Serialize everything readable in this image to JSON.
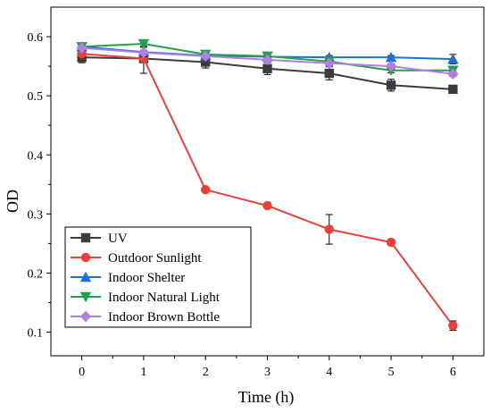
{
  "chart_data": {
    "type": "line",
    "xlabel": "Time (h)",
    "ylabel": "OD",
    "x": [
      0,
      1,
      2,
      3,
      4,
      5,
      6
    ],
    "xlim": [
      -0.5,
      6.5
    ],
    "ylim": [
      0.06,
      0.65
    ],
    "x_ticks": [
      "0",
      "1",
      "2",
      "3",
      "4",
      "5",
      "6"
    ],
    "y_ticks": [
      "0.1",
      "0.2",
      "0.3",
      "0.4",
      "0.5",
      "0.6"
    ],
    "grid": false,
    "legend_position": "bottom-left",
    "series": [
      {
        "name": "UV",
        "color": "#3c3c3c",
        "marker": "square",
        "values": [
          0.565,
          0.563,
          0.557,
          0.546,
          0.538,
          0.518,
          0.511
        ],
        "errors": [
          0.009,
          0.007,
          0.01,
          0.01,
          0.011,
          0.01,
          0.003
        ]
      },
      {
        "name": "Outdoor Sunlight",
        "color": "#e8413c",
        "marker": "circle",
        "values": [
          0.571,
          0.563,
          0.341,
          0.314,
          0.274,
          0.252,
          0.111
        ],
        "errors": [
          0.006,
          0.025,
          0.004,
          0.004,
          0.025,
          0.004,
          0.008
        ]
      },
      {
        "name": "Indoor Shelter",
        "color": "#1f6fd6",
        "marker": "triangle-up",
        "values": [
          0.583,
          0.574,
          0.568,
          0.566,
          0.565,
          0.565,
          0.562
        ],
        "errors": [
          0.003,
          0.008,
          0.003,
          0.003,
          0.003,
          0.003,
          0.008
        ]
      },
      {
        "name": "Indoor Natural Light",
        "color": "#22a04b",
        "marker": "triangle-down",
        "values": [
          0.583,
          0.588,
          0.57,
          0.567,
          0.558,
          0.543,
          0.543
        ],
        "errors": [
          0.003,
          0.004,
          0.005,
          0.003,
          0.004,
          0.004,
          0.004
        ]
      },
      {
        "name": "Indoor Brown Bottle",
        "color": "#b07fe0",
        "marker": "diamond",
        "values": [
          0.581,
          0.573,
          0.567,
          0.561,
          0.555,
          0.55,
          0.537
        ],
        "errors": [
          0.004,
          0.004,
          0.004,
          0.004,
          0.004,
          0.004,
          0.004
        ]
      }
    ]
  }
}
